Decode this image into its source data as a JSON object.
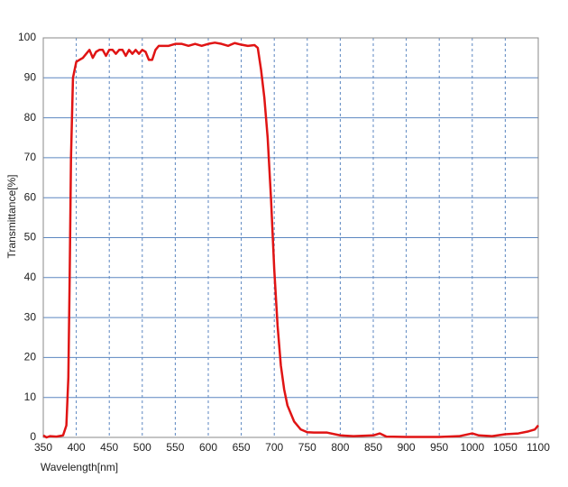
{
  "chart_data": {
    "type": "line",
    "x_label": "Wavelength[nm]",
    "y_label": "Transmittance[%]",
    "xlim": [
      350,
      1100
    ],
    "xticks": [
      350,
      400,
      450,
      500,
      550,
      600,
      650,
      700,
      750,
      800,
      850,
      900,
      950,
      1000,
      1050,
      1100
    ],
    "ylim": [
      0,
      100
    ],
    "yticks": [
      0,
      10,
      20,
      30,
      40,
      50,
      60,
      70,
      80,
      90,
      100
    ],
    "grid": true,
    "series": [
      {
        "color": "#e01414",
        "x": [
          350,
          355,
          360,
          370,
          380,
          385,
          388,
          390,
          392,
          395,
          400,
          405,
          410,
          415,
          420,
          425,
          430,
          435,
          440,
          445,
          450,
          455,
          460,
          465,
          470,
          475,
          480,
          485,
          490,
          495,
          500,
          505,
          510,
          515,
          520,
          525,
          530,
          540,
          550,
          560,
          570,
          580,
          590,
          600,
          610,
          620,
          630,
          640,
          650,
          660,
          670,
          675,
          680,
          685,
          690,
          695,
          700,
          705,
          710,
          715,
          720,
          730,
          740,
          750,
          760,
          780,
          800,
          820,
          850,
          860,
          870,
          900,
          950,
          980,
          1000,
          1010,
          1030,
          1050,
          1070,
          1085,
          1095,
          1100
        ],
        "values": [
          0.5,
          0,
          0.3,
          0.2,
          0.5,
          3,
          15,
          40,
          70,
          90,
          94,
          94.5,
          95,
          96,
          97,
          95,
          96.5,
          97,
          97,
          95.5,
          97,
          97,
          96,
          97,
          97,
          95.5,
          97,
          96,
          97,
          96,
          97,
          96.5,
          94.5,
          94.5,
          97,
          98,
          98,
          98,
          98.5,
          98.5,
          98,
          98.5,
          98,
          98.5,
          98.8,
          98.5,
          98,
          98.7,
          98.3,
          98,
          98.2,
          97.5,
          92,
          85,
          75,
          60,
          42,
          28,
          18,
          12,
          8,
          4,
          2,
          1.3,
          1.2,
          1.2,
          0.5,
          0.3,
          0.5,
          1,
          0.2,
          0.1,
          0.1,
          0.3,
          1,
          0.5,
          0.3,
          0.8,
          1,
          1.5,
          2,
          3
        ]
      }
    ]
  }
}
